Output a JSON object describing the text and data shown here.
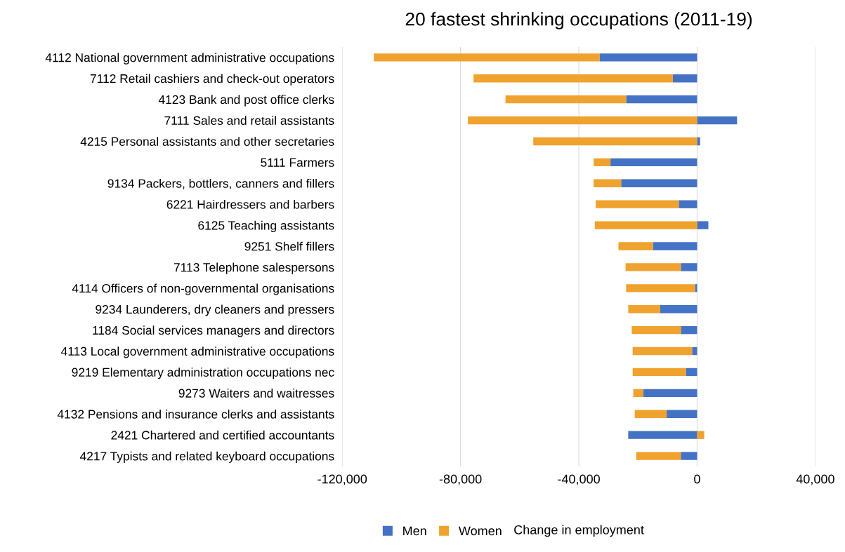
{
  "chart_data": {
    "type": "bar",
    "orientation": "horizontal",
    "stacked": true,
    "title": "20 fastest shrinking occupations (2011-19)",
    "xlabel": "Change in employment",
    "categories": [
      "4112 National government administrative occupations",
      "7112 Retail cashiers and check-out operators",
      "4123 Bank and post office clerks",
      "7111 Sales and retail assistants",
      "4215 Personal assistants and other secretaries",
      "5111 Farmers",
      "9134 Packers, bottlers, canners and fillers",
      "6221 Hairdressers and barbers",
      "6125 Teaching assistants",
      "9251 Shelf fillers",
      "7113 Telephone salespersons",
      "4114 Officers of non-governmental organisations",
      "9234 Launderers, dry cleaners and pressers",
      "1184 Social services managers and directors",
      "4113 Local government administrative occupations",
      "9219 Elementary administration occupations nec",
      "9273 Waiters and waitresses",
      "4132 Pensions and insurance clerks and assistants",
      "2421 Chartered and certified accountants",
      "4217 Typists and related keyboard occupations"
    ],
    "series": [
      {
        "name": "Men",
        "color": "#4472c4",
        "values": [
          -33000,
          -8200,
          -24000,
          13500,
          1000,
          -29300,
          -25700,
          -6200,
          3800,
          -14900,
          -5500,
          -700,
          -12500,
          -5500,
          -1700,
          -3800,
          -18200,
          -10300,
          -23300,
          -5500
        ]
      },
      {
        "name": "Women",
        "color": "#f0a22e",
        "values": [
          -76300,
          -67400,
          -40800,
          -77500,
          -55400,
          -5700,
          -9300,
          -28100,
          -34600,
          -11700,
          -18700,
          -23300,
          -10800,
          -16600,
          -20100,
          -18000,
          -3400,
          -10800,
          2400,
          -15100
        ]
      }
    ],
    "xlim": [
      -120000,
      40000
    ],
    "xticks": [
      {
        "value": -120000,
        "label": "-120,000"
      },
      {
        "value": -80000,
        "label": "-80,000"
      },
      {
        "value": -40000,
        "label": "-40,000"
      },
      0,
      {
        "value": 40000,
        "label": "40,000"
      }
    ],
    "grid": "x",
    "legend": "bottom"
  }
}
